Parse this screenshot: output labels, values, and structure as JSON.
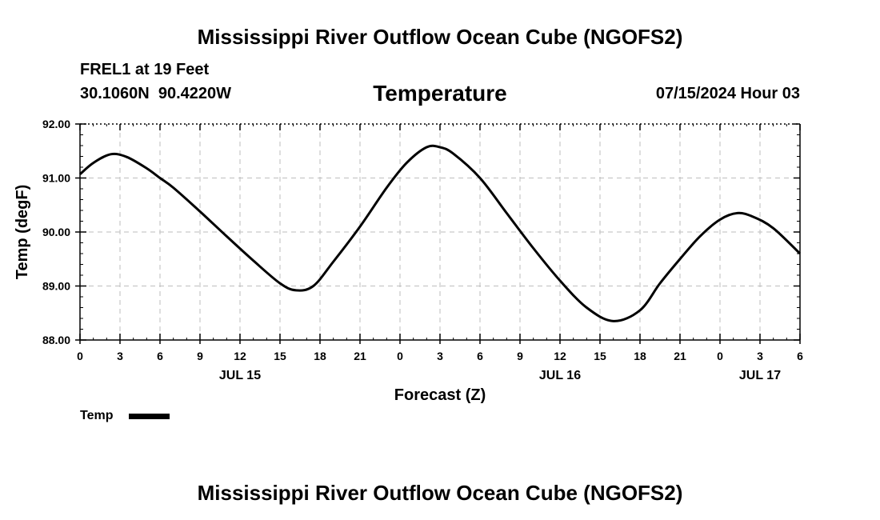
{
  "header": {
    "title": "Mississippi River Outflow Ocean Cube (NGOFS2)",
    "station": "FREL1 at 19 Feet",
    "coords": "30.1060N  90.4220W",
    "variable": "Temperature",
    "datetime": "07/15/2024 Hour 03"
  },
  "footer": {
    "title": "Mississippi River Outflow Ocean Cube (NGOFS2)"
  },
  "chart_data": {
    "type": "line",
    "title": "Temperature",
    "xlabel": "Forecast (Z)",
    "ylabel": "Temp (degF)",
    "ylim": [
      88.0,
      92.0
    ],
    "xlim": [
      0,
      54
    ],
    "grid": true,
    "y_ticks": [
      "88.00",
      "89.00",
      "90.00",
      "91.00",
      "92.00"
    ],
    "x_ticks": [
      "0",
      "3",
      "6",
      "9",
      "12",
      "15",
      "18",
      "21",
      "0",
      "3",
      "6",
      "9",
      "12",
      "15",
      "18",
      "21",
      "0",
      "3",
      "6"
    ],
    "day_labels": [
      {
        "label": "JUL 15",
        "hour": 12
      },
      {
        "label": "JUL 16",
        "hour": 36
      },
      {
        "label": "JUL 17",
        "hour": 51
      }
    ],
    "legend": {
      "label": "Temp",
      "position": "bottom-left"
    },
    "series": [
      {
        "name": "Temp",
        "color": "#000000",
        "x": [
          0,
          1,
          2.3,
          3.5,
          5,
          6,
          7,
          9,
          11,
          13,
          15,
          16.2,
          17.5,
          19,
          21,
          23,
          24.5,
          26,
          27,
          28,
          30,
          32,
          34,
          36,
          38,
          40,
          42,
          43.5,
          45,
          46.5,
          48,
          49.3,
          50.5,
          52,
          54
        ],
        "values": [
          91.07,
          91.28,
          91.44,
          91.39,
          91.18,
          91.0,
          90.82,
          90.38,
          89.92,
          89.47,
          89.05,
          88.92,
          89.0,
          89.45,
          90.1,
          90.82,
          91.28,
          91.57,
          91.57,
          91.45,
          91.0,
          90.35,
          89.7,
          89.1,
          88.6,
          88.35,
          88.55,
          89.05,
          89.5,
          89.92,
          90.23,
          90.35,
          90.28,
          90.07,
          89.6
        ]
      }
    ]
  }
}
